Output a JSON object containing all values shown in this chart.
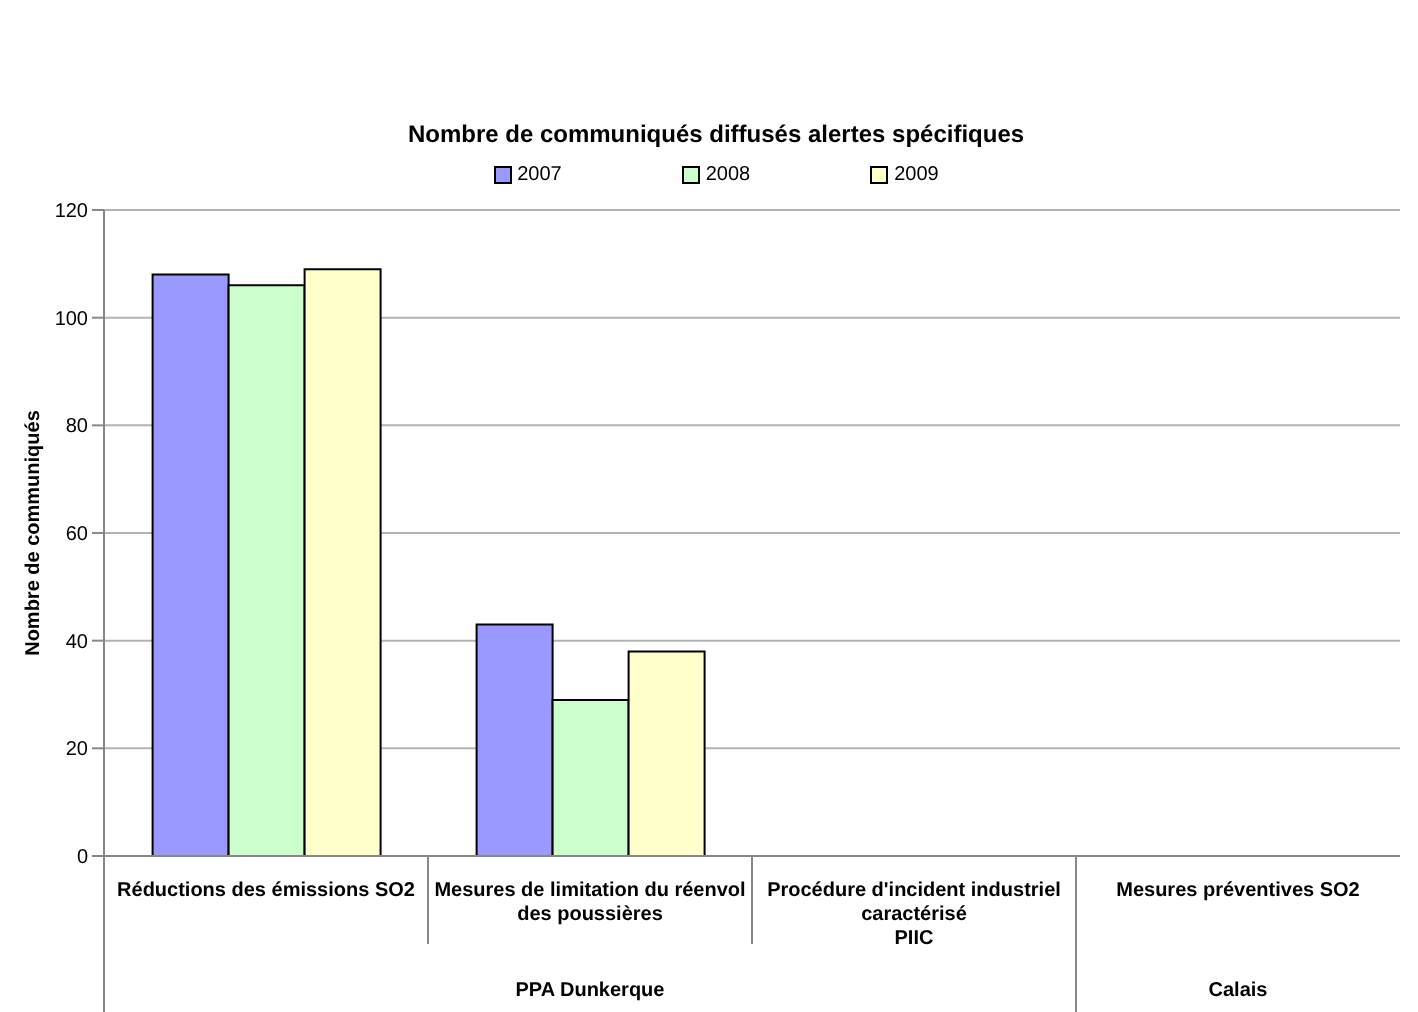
{
  "chart_data": {
    "type": "bar",
    "title": "Nombre de communiqués diffusés alertes spécifiques",
    "ylabel": "Nombre de communiqués",
    "categories": [
      "Réductions des émissions SO2",
      "Mesures de limitation du réenvol des poussières",
      "Procédure d'incident industriel caractérisé\nPIIC",
      "Mesures préventives SO2"
    ],
    "series": [
      {
        "name": "2007",
        "color": "#9999ff",
        "values": [
          108,
          43,
          null,
          null
        ]
      },
      {
        "name": "2008",
        "color": "#ccffcc",
        "values": [
          106,
          29,
          null,
          null
        ]
      },
      {
        "name": "2009",
        "color": "#ffffcc",
        "values": [
          109,
          38,
          null,
          null
        ]
      }
    ],
    "annotations": [
      "PPA Dunkerque",
      "Calais"
    ],
    "ylim": [
      0,
      120
    ],
    "yticks": [
      0,
      20,
      40,
      60,
      80,
      100,
      120
    ],
    "grid": "y",
    "legend": "top"
  }
}
